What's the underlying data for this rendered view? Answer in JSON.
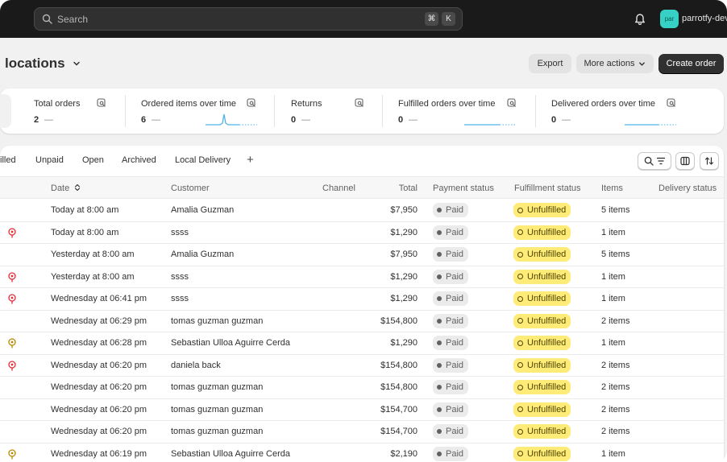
{
  "topbar": {
    "search_placeholder": "Search",
    "shortcut_keys": [
      "⌘",
      "K"
    ],
    "store_avatar_text": "par",
    "store_name": "parrotfy-dev"
  },
  "header": {
    "title": "locations",
    "export_label": "Export",
    "more_actions_label": "More actions",
    "create_order_label": "Create order"
  },
  "metrics": [
    {
      "label": "Total orders",
      "value": "2",
      "dash": "—"
    },
    {
      "label": "Ordered items over time",
      "value": "6",
      "dash": "—"
    },
    {
      "label": "Returns",
      "value": "0",
      "dash": "—"
    },
    {
      "label": "Fulfilled orders over time",
      "value": "0",
      "dash": "—"
    },
    {
      "label": "Delivered orders over time",
      "value": "0",
      "dash": "—"
    }
  ],
  "tabs": [
    "illed",
    "Unpaid",
    "Open",
    "Archived",
    "Local Delivery"
  ],
  "table": {
    "headers": {
      "date": "Date",
      "customer": "Customer",
      "channel": "Channel",
      "total": "Total",
      "payment_status": "Payment status",
      "fulfillment_status": "Fulfillment status",
      "items": "Items",
      "delivery_status": "Delivery status"
    },
    "rows": [
      {
        "risk": "",
        "date": "Today at 8:00 am",
        "customer": "Amalia Guzman",
        "total": "$7,950",
        "payment": "Paid",
        "fulfillment": "Unfulfilled",
        "items": "5 items"
      },
      {
        "risk": "high",
        "date": "Today at 8:00 am",
        "customer": "ssss",
        "total": "$1,290",
        "payment": "Paid",
        "fulfillment": "Unfulfilled",
        "items": "1 item"
      },
      {
        "risk": "",
        "date": "Yesterday at 8:00 am",
        "customer": "Amalia Guzman",
        "total": "$7,950",
        "payment": "Paid",
        "fulfillment": "Unfulfilled",
        "items": "5 items"
      },
      {
        "risk": "high",
        "date": "Yesterday at 8:00 am",
        "customer": "ssss",
        "total": "$1,290",
        "payment": "Paid",
        "fulfillment": "Unfulfilled",
        "items": "1 item"
      },
      {
        "risk": "high",
        "date": "Wednesday at 06:41 pm",
        "customer": "ssss",
        "total": "$1,290",
        "payment": "Paid",
        "fulfillment": "Unfulfilled",
        "items": "1 item"
      },
      {
        "risk": "",
        "date": "Wednesday at 06:29 pm",
        "customer": "tomas guzman guzman",
        "total": "$154,800",
        "payment": "Paid",
        "fulfillment": "Unfulfilled",
        "items": "2 items"
      },
      {
        "risk": "medium",
        "date": "Wednesday at 06:28 pm",
        "customer": "Sebastian Ulloa Aguirre Cerda",
        "total": "$1,290",
        "payment": "Paid",
        "fulfillment": "Unfulfilled",
        "items": "1 item"
      },
      {
        "risk": "high",
        "date": "Wednesday at 06:20 pm",
        "customer": "daniela back",
        "total": "$154,800",
        "payment": "Paid",
        "fulfillment": "Unfulfilled",
        "items": "2 items"
      },
      {
        "risk": "",
        "date": "Wednesday at 06:20 pm",
        "customer": "tomas guzman guzman",
        "total": "$154,800",
        "payment": "Paid",
        "fulfillment": "Unfulfilled",
        "items": "2 items"
      },
      {
        "risk": "",
        "date": "Wednesday at 06:20 pm",
        "customer": "tomas guzman guzman",
        "total": "$154,700",
        "payment": "Paid",
        "fulfillment": "Unfulfilled",
        "items": "2 items"
      },
      {
        "risk": "",
        "date": "Wednesday at 06:20 pm",
        "customer": "tomas guzman guzman",
        "total": "$154,700",
        "payment": "Paid",
        "fulfillment": "Unfulfilled",
        "items": "2 items"
      },
      {
        "risk": "medium",
        "date": "Wednesday at 06:19 pm",
        "customer": "Sebastian Ulloa Aguirre Cerda",
        "total": "$2,190",
        "payment": "Paid",
        "fulfillment": "Unfulfilled",
        "items": "1 item"
      }
    ]
  },
  "colors": {
    "topbar": "#1a1a1a",
    "accent_avatar": "#36d1c4",
    "sparkline": "#4fb3e8",
    "risk_high": "#e22c38",
    "risk_medium": "#b98900",
    "unfulfilled_badge": "#ffeb78",
    "paid_badge": "#ebebeb"
  }
}
